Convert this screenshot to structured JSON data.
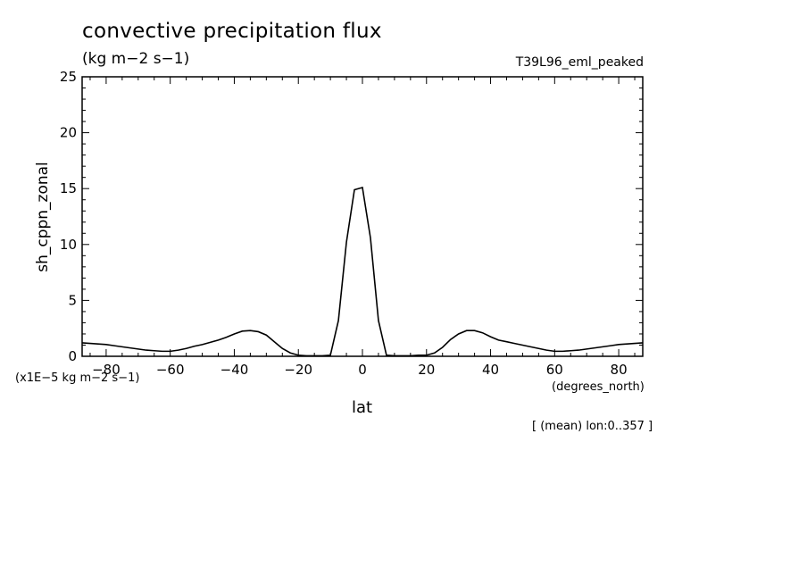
{
  "header": {
    "title": "convective precipitation flux",
    "units": "(kg m−2 s−1)",
    "run_name": "T39L96_eml_peaked"
  },
  "footer": {
    "multiplier": "(x1E−5 kg m−2 s−1)",
    "x_units": "(degrees_north)",
    "mean_note": "[ (mean) lon:0..357 ]"
  },
  "chart_data": {
    "type": "line",
    "xlabel": "lat",
    "ylabel": "sh_cppn_zonal",
    "xlim": [
      -87.5,
      87.5
    ],
    "ylim": [
      0,
      25
    ],
    "x_ticks": [
      -80,
      -60,
      -40,
      -20,
      0,
      20,
      40,
      60,
      80
    ],
    "x_tick_labels": [
      "−80",
      "−60",
      "−40",
      "−20",
      "0",
      "20",
      "40",
      "60",
      "80"
    ],
    "y_ticks": [
      0,
      5,
      10,
      15,
      20,
      25
    ],
    "y_tick_labels": [
      "0",
      "5",
      "10",
      "15",
      "20",
      "25"
    ],
    "grid": false,
    "series": [
      {
        "x": [
          -87.5,
          -85,
          -82.5,
          -80,
          -77.5,
          -75,
          -72.5,
          -70,
          -67.5,
          -65,
          -62.5,
          -60,
          -57.5,
          -55,
          -52.5,
          -50,
          -47.5,
          -45,
          -42.5,
          -40,
          -37.5,
          -35,
          -32.5,
          -30,
          -27.5,
          -25,
          -22.5,
          -20,
          -17.5,
          -15,
          -12.5,
          -10,
          -7.5,
          -5,
          -2.5,
          0,
          2.5,
          5,
          7.5,
          10,
          12.5,
          15,
          17.5,
          20,
          22.5,
          25,
          27.5,
          30,
          32.5,
          35,
          37.5,
          40,
          42.5,
          45,
          47.5,
          50,
          52.5,
          55,
          57.5,
          60,
          62.5,
          65,
          67.5,
          70,
          72.5,
          75,
          77.5,
          80,
          82.5,
          85,
          87.5
        ],
        "y": [
          1.2,
          1.15,
          1.1,
          1.05,
          0.95,
          0.85,
          0.75,
          0.65,
          0.55,
          0.5,
          0.45,
          0.45,
          0.55,
          0.7,
          0.9,
          1.05,
          1.25,
          1.45,
          1.7,
          2.0,
          2.25,
          2.3,
          2.2,
          1.9,
          1.3,
          0.7,
          0.3,
          0.1,
          0.05,
          0.05,
          0.05,
          0.1,
          3.2,
          10.2,
          14.9,
          15.1,
          10.6,
          3.2,
          0.1,
          0.05,
          0.05,
          0.05,
          0.1,
          0.1,
          0.3,
          0.8,
          1.5,
          2.0,
          2.3,
          2.3,
          2.1,
          1.75,
          1.45,
          1.3,
          1.15,
          1.0,
          0.85,
          0.7,
          0.55,
          0.45,
          0.45,
          0.5,
          0.55,
          0.65,
          0.75,
          0.85,
          0.95,
          1.05,
          1.1,
          1.15,
          1.2
        ]
      }
    ]
  }
}
